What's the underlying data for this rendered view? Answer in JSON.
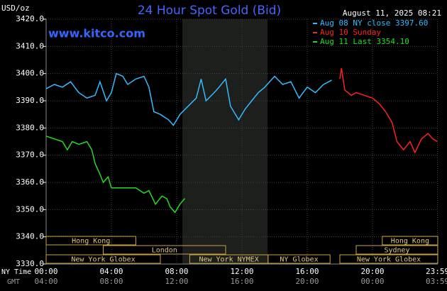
{
  "chart_data": {
    "type": "line",
    "title": "24 Hour Spot Gold (Bid)",
    "unit": "USD/oz",
    "timestamp": "August 11, 2025 08:21",
    "site": "www.kitco.com",
    "x_axis_label": "NY Time",
    "x2_axis_label": "GMT",
    "xlim": [
      0,
      24
    ],
    "ylim": [
      3330,
      3420
    ],
    "xticks": [
      {
        "value": 0,
        "label": "00:00"
      },
      {
        "value": 4,
        "label": "04:00"
      },
      {
        "value": 8,
        "label": "08:00"
      },
      {
        "value": 12,
        "label": "12:00"
      },
      {
        "value": 16,
        "label": "16:00"
      },
      {
        "value": 20,
        "label": "20:00"
      },
      {
        "value": 23.98,
        "label": "23:59"
      }
    ],
    "x2ticks": [
      "04:00",
      "08:00",
      "12:00",
      "16:00",
      "20:00",
      "00:00",
      "03:59"
    ],
    "yticks": [
      {
        "value": 3420,
        "label": "3420.0"
      },
      {
        "value": 3410,
        "label": "3410.0"
      },
      {
        "value": 3400,
        "label": "3400.0"
      },
      {
        "value": 3390,
        "label": "3390.0"
      },
      {
        "value": 3380,
        "label": "3380.0"
      },
      {
        "value": 3370,
        "label": "3370.0"
      },
      {
        "value": 3360,
        "label": "3360.0"
      },
      {
        "value": 3350,
        "label": "3350.0"
      },
      {
        "value": 3340,
        "label": "3340.0"
      },
      {
        "value": 3330,
        "label": "3330.0"
      }
    ],
    "grid": true,
    "highlight": [
      8.35,
      13.57
    ],
    "series": [
      {
        "name": "Aug 08 NY close 3397.60",
        "color": "#33bbff",
        "x": [
          0,
          0.5,
          1,
          1.5,
          2,
          2.5,
          3,
          3.3,
          3.7,
          4,
          4.3,
          4.7,
          5,
          5.5,
          6,
          6.3,
          6.6,
          7,
          7.5,
          7.8,
          8.2,
          8.7,
          9.2,
          9.5,
          9.8,
          10.3,
          10.6,
          11,
          11.3,
          11.8,
          12.2,
          12.6,
          13,
          13.4,
          14,
          14.5,
          15,
          15.5,
          16,
          16.5,
          17,
          17.5
        ],
        "values": [
          3394.4,
          3396,
          3395,
          3397,
          3393,
          3391,
          3392,
          3397,
          3390,
          3393,
          3400,
          3399,
          3396,
          3398,
          3399,
          3395,
          3386,
          3385,
          3383,
          3381,
          3385,
          3388,
          3391,
          3398,
          3390,
          3393,
          3395,
          3398,
          3388,
          3383,
          3387,
          3390,
          3393,
          3395,
          3399,
          3396,
          3397,
          3391,
          3395,
          3393,
          3396,
          3397.6
        ]
      },
      {
        "name": "Aug 10 Sunday",
        "color": "#ff2020",
        "x": [
          18,
          18.1,
          18.3,
          18.7,
          19,
          19.5,
          20,
          20.4,
          20.8,
          21.2,
          21.5,
          21.9,
          22.3,
          22.6,
          23,
          23.4,
          23.7,
          23.98
        ],
        "values": [
          3398,
          3402,
          3394,
          3392,
          3393,
          3392,
          3391,
          3389,
          3386,
          3382,
          3375,
          3372,
          3375,
          3371,
          3376,
          3378,
          3376,
          3375
        ]
      },
      {
        "name": "Aug 11 Last 3354.10",
        "color": "#22dd22",
        "x": [
          0,
          0.5,
          1,
          1.3,
          1.6,
          2,
          2.5,
          2.8,
          3,
          3.3,
          3.5,
          3.8,
          4,
          4.5,
          5,
          5.5,
          6,
          6.3,
          6.7,
          7.1,
          7.4,
          7.6,
          7.9,
          8.2,
          8.5
        ],
        "values": [
          3377,
          3376,
          3375,
          3372,
          3375,
          3374,
          3375,
          3372,
          3367,
          3363,
          3360,
          3362,
          3358,
          3358,
          3358,
          3358,
          3356,
          3357,
          3352,
          3355,
          3354,
          3351,
          3349,
          3352,
          3354.1
        ]
      }
    ],
    "session_rows": [
      [
        {
          "name": "Hong Kong",
          "start": 0,
          "end": 5.5
        },
        {
          "name": "Hong Kong",
          "start": 20.6,
          "end": 24
        }
      ],
      [
        {
          "name": "London",
          "start": 3.5,
          "end": 11
        },
        {
          "name": "Sydney",
          "start": 19,
          "end": 24
        }
      ],
      [
        {
          "name": "New York Globex",
          "start": 0,
          "end": 7
        },
        {
          "name": "New York NYMEX",
          "start": 8.8,
          "end": 13.6
        },
        {
          "name": "NY Globex",
          "start": 13.6,
          "end": 17.4
        },
        {
          "name": "New York Globex",
          "start": 18,
          "end": 24
        }
      ]
    ]
  }
}
